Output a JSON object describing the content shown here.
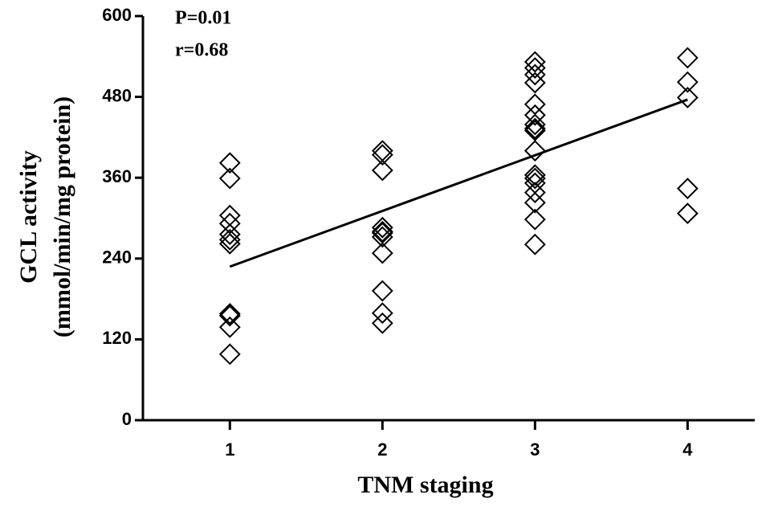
{
  "chart_data": {
    "type": "scatter",
    "x_label": "TNM staging",
    "y_label": [
      "GCL activity",
      "(mmol/min/mg protein)"
    ],
    "annotations": [
      "P=0.01",
      "r=0.68"
    ],
    "xlim": [
      0.43,
      4.44
    ],
    "xticks": [
      1,
      2,
      3,
      4
    ],
    "ylim": [
      0,
      600
    ],
    "yticks": [
      0,
      120,
      240,
      360,
      480,
      600
    ],
    "color": "#000000",
    "series": [
      {
        "color": "#000000",
        "x": [
          1,
          1,
          1,
          1,
          1,
          1,
          1,
          1,
          1,
          1,
          1,
          2,
          2,
          2,
          2,
          2,
          2,
          2,
          2,
          2,
          2,
          2,
          3,
          3,
          3,
          3,
          3,
          3,
          3,
          3,
          3,
          3,
          3,
          3,
          3,
          3,
          3,
          3,
          3,
          4,
          4,
          4,
          4,
          4
        ],
        "values": [
          382,
          359,
          304,
          292,
          276,
          268,
          262,
          158,
          155,
          138,
          98,
          400,
          394,
          371,
          286,
          280,
          278,
          272,
          248,
          192,
          159,
          144,
          532,
          523,
          513,
          501,
          469,
          453,
          439,
          433,
          430,
          400,
          364,
          359,
          352,
          338,
          323,
          298,
          261,
          538,
          502,
          479,
          344,
          307
        ]
      }
    ],
    "trend_line": {
      "x": [
        1,
        4
      ],
      "values": [
        228,
        476
      ],
      "color": "#000000"
    }
  }
}
